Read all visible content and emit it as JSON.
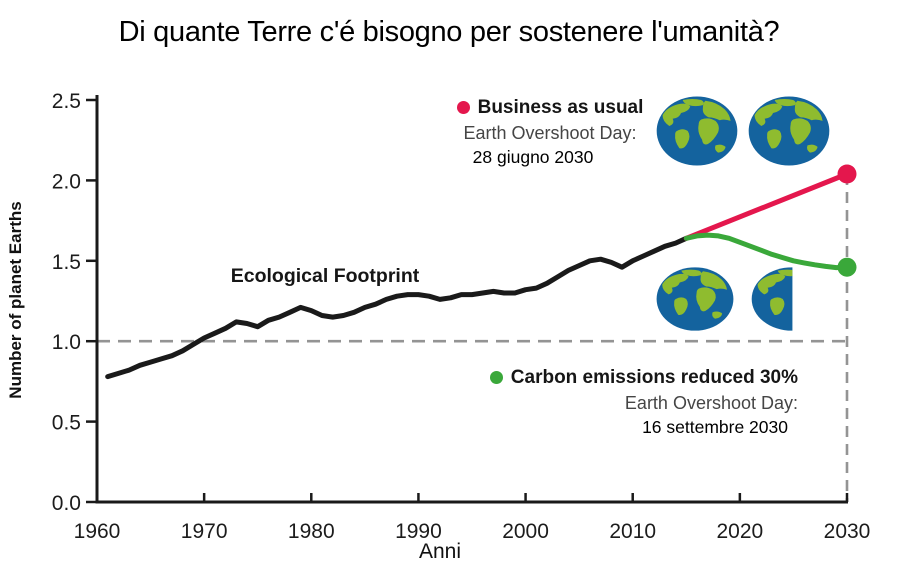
{
  "title": "Di quante Terre c'é bisogno per sostenere l'umanità?",
  "colors": {
    "red": "#e4174d",
    "green": "#3aa83a",
    "black_line": "#1a1a1a",
    "dash_gray": "#949494",
    "earth_ocean": "#14639e",
    "earth_land": "#8fbc2f",
    "sub_text_gray": "#454545"
  },
  "annotations": {
    "footprint_label": "Ecological Footprint",
    "legend_red": {
      "title": "Business as usual",
      "line1": "Earth Overshoot Day:",
      "line2": "28 giugno 2030"
    },
    "legend_green": {
      "title": "Carbon emissions reduced 30%",
      "line1": "Earth Overshoot Day:",
      "line2": "16 settembre 2030"
    }
  },
  "icons": {
    "earths_top_pair": "two-full-earths",
    "earths_bottom_pair": "one-and-a-half-earths"
  },
  "chart_data": {
    "type": "line",
    "title": "Di quante Terre c'é bisogno per sostenere l'umanità?",
    "xlabel": "Anni",
    "ylabel": "Number of planet Earths",
    "xlim": [
      1960,
      2030
    ],
    "ylim": [
      0,
      2.5
    ],
    "xticks": [
      1960,
      1970,
      1980,
      1990,
      2000,
      2010,
      2020,
      2030
    ],
    "ytick_labels": [
      "0.0",
      "0.5",
      "1.0",
      "1.5",
      "2.0",
      "2.5"
    ],
    "grid": false,
    "reference_line_y": 1.0,
    "reference_line_x": 2030,
    "legend_position": "inside-top-right and inside-bottom-right",
    "series": [
      {
        "name": "Ecological Footprint",
        "color": "#1a1a1a",
        "end_dot": false,
        "x": [
          1961,
          1962,
          1963,
          1964,
          1965,
          1966,
          1967,
          1968,
          1969,
          1970,
          1971,
          1972,
          1973,
          1974,
          1975,
          1976,
          1977,
          1978,
          1979,
          1980,
          1981,
          1982,
          1983,
          1984,
          1985,
          1986,
          1987,
          1988,
          1989,
          1990,
          1991,
          1992,
          1993,
          1994,
          1995,
          1996,
          1997,
          1998,
          1999,
          2000,
          2001,
          2002,
          2003,
          2004,
          2005,
          2006,
          2007,
          2008,
          2009,
          2010,
          2011,
          2012,
          2013,
          2014,
          2015
        ],
        "y": [
          0.78,
          0.8,
          0.82,
          0.85,
          0.87,
          0.89,
          0.91,
          0.94,
          0.98,
          1.02,
          1.05,
          1.08,
          1.12,
          1.11,
          1.09,
          1.13,
          1.15,
          1.18,
          1.21,
          1.19,
          1.16,
          1.15,
          1.16,
          1.18,
          1.21,
          1.23,
          1.26,
          1.28,
          1.29,
          1.29,
          1.28,
          1.26,
          1.27,
          1.29,
          1.29,
          1.3,
          1.31,
          1.3,
          1.3,
          1.32,
          1.33,
          1.36,
          1.4,
          1.44,
          1.47,
          1.5,
          1.51,
          1.49,
          1.46,
          1.5,
          1.53,
          1.56,
          1.59,
          1.61,
          1.64
        ]
      },
      {
        "name": "Business as usual",
        "color": "#e4174d",
        "end_dot": true,
        "x": [
          2015,
          2030
        ],
        "y": [
          1.64,
          2.04
        ]
      },
      {
        "name": "Carbon emissions reduced 30%",
        "color": "#3aa83a",
        "end_dot": true,
        "x": [
          2015,
          2016,
          2017,
          2018,
          2019,
          2020,
          2021,
          2022,
          2023,
          2024,
          2025,
          2026,
          2027,
          2028,
          2029,
          2030
        ],
        "y": [
          1.64,
          1.655,
          1.66,
          1.655,
          1.64,
          1.615,
          1.59,
          1.565,
          1.54,
          1.52,
          1.5,
          1.487,
          1.475,
          1.465,
          1.458,
          1.46
        ]
      }
    ]
  }
}
